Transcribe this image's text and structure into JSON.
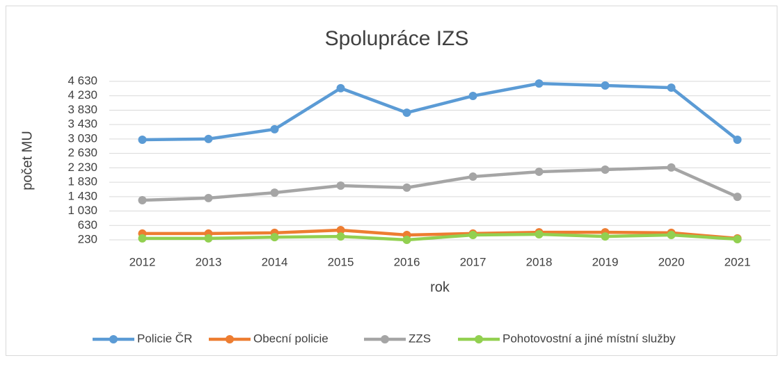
{
  "chart_data": {
    "type": "line",
    "title": "Spolupráce IZS",
    "x_label": "rok",
    "y_label": "počet MU",
    "categories": [
      "2012",
      "2013",
      "2014",
      "2015",
      "2016",
      "2017",
      "2018",
      "2019",
      "2020",
      "2021"
    ],
    "series": [
      {
        "name": "Policie ČR",
        "color": "#5b9bd5",
        "values": [
          3010,
          3030,
          3300,
          4440,
          3760,
          4225,
          4570,
          4515,
          4455,
          3010
        ]
      },
      {
        "name": "Obecní policie",
        "color": "#ed7d31",
        "values": [
          405,
          405,
          425,
          500,
          365,
          405,
          440,
          440,
          425,
          270
        ]
      },
      {
        "name": "ZZS",
        "color": "#a5a5a5",
        "values": [
          1330,
          1390,
          1540,
          1735,
          1680,
          1985,
          2120,
          2180,
          2240,
          1425
        ]
      },
      {
        "name": "Pohotovostní a jiné místní služby",
        "color": "#92d050",
        "values": [
          270,
          270,
          305,
          325,
          230,
          365,
          385,
          325,
          365,
          250
        ]
      }
    ],
    "ylim": [
      230,
      4630
    ],
    "yticks": [
      230,
      630,
      {
        "value": 1030,
        "label": "1 030"
      },
      {
        "value": 1430,
        "label": "1 430"
      },
      {
        "value": 1830,
        "label": "1 830"
      },
      {
        "value": 2230,
        "label": "2 230"
      },
      {
        "value": 2630,
        "label": "2 630"
      },
      {
        "value": 3030,
        "label": "3 030"
      },
      {
        "value": 3430,
        "label": "3 430"
      },
      {
        "value": 3830,
        "label": "3 830"
      },
      {
        "value": 4230,
        "label": "4 230"
      },
      {
        "value": 4630,
        "label": "4 630"
      }
    ],
    "grid": true,
    "legend": "bottom"
  }
}
